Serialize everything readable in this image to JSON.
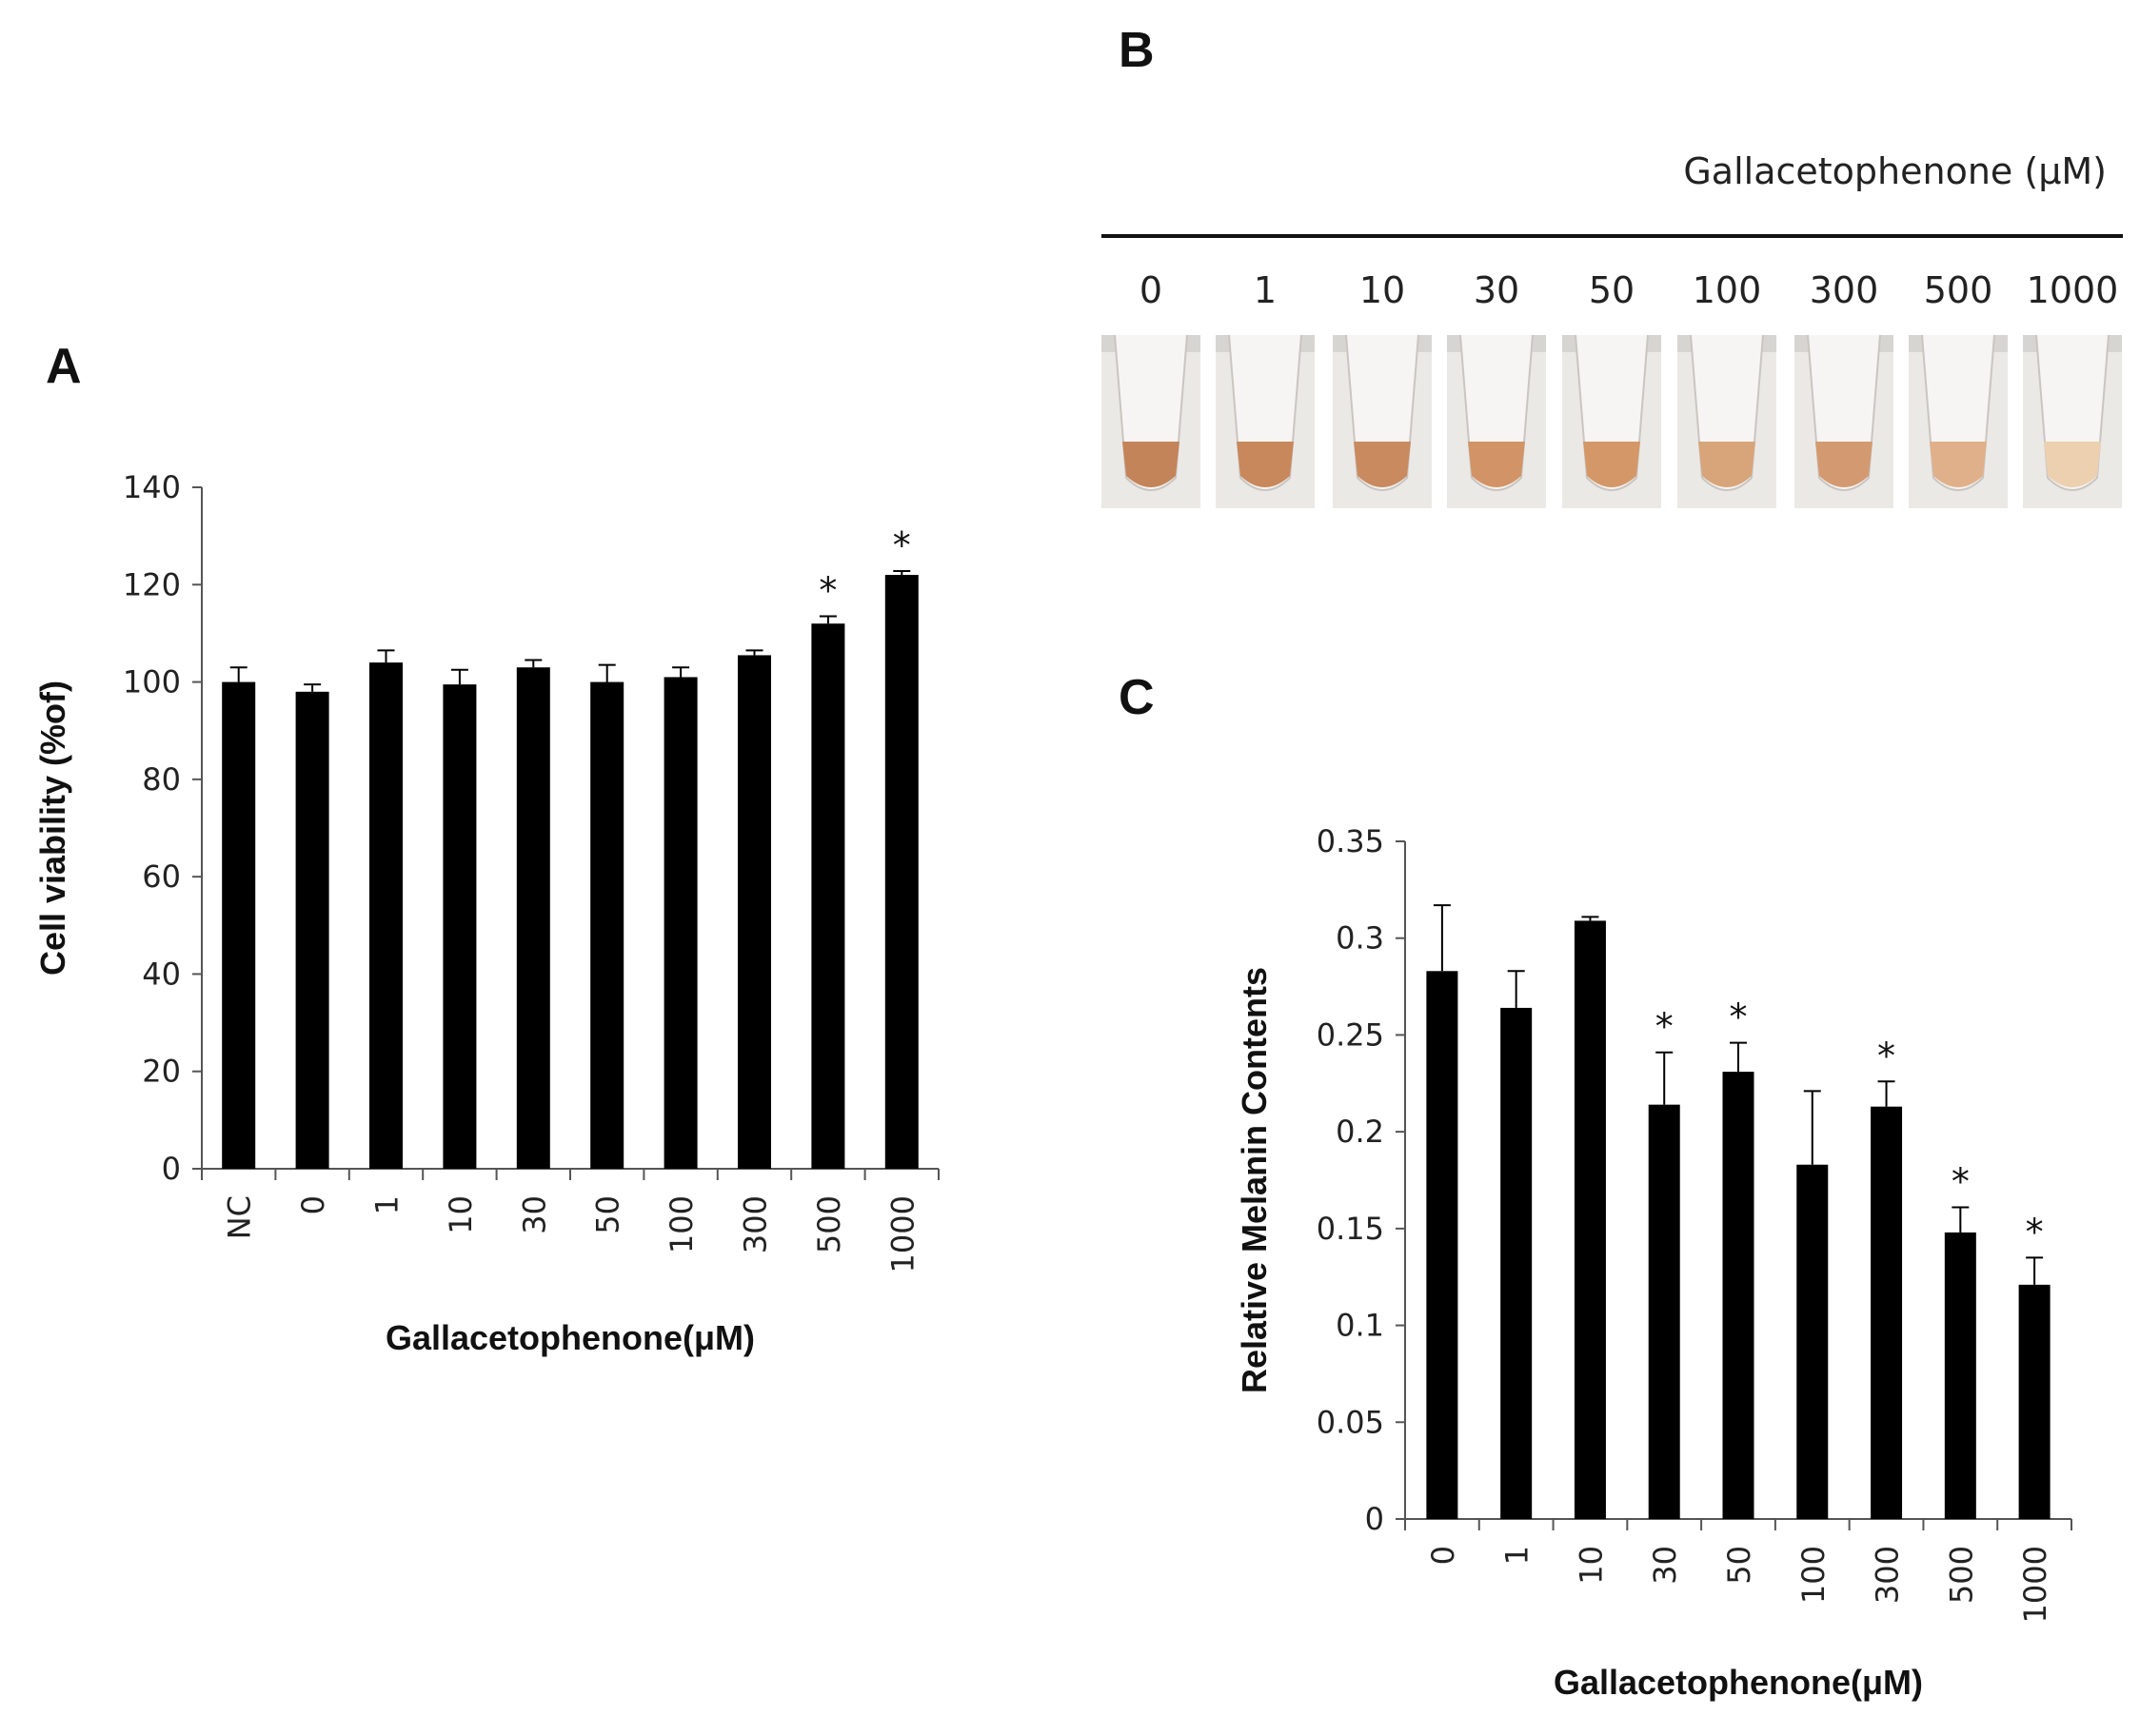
{
  "panels": {
    "a": "A",
    "b": "B",
    "c": "C"
  },
  "panel_b": {
    "header": "Gallacetophenone (μM)",
    "concentrations": [
      "0",
      "1",
      "10",
      "30",
      "50",
      "100",
      "300",
      "500",
      "1000"
    ],
    "tube_colors": [
      "#c4845a",
      "#c8885c",
      "#c98a60",
      "#d29466",
      "#d49868",
      "#d8a57a",
      "#d39a72",
      "#e0b08a",
      "#ecd0b0"
    ]
  },
  "chart_data": [
    {
      "type": "bar",
      "panel": "A",
      "categories": [
        "NC",
        "0",
        "1",
        "10",
        "30",
        "50",
        "100",
        "300",
        "500",
        "1000"
      ],
      "values": [
        100,
        98,
        104,
        99.5,
        103,
        100,
        101,
        105.5,
        112,
        122
      ],
      "errors": [
        3,
        1.5,
        2.5,
        3,
        1.5,
        3.5,
        2,
        1,
        1.5,
        0.8
      ],
      "significant": [
        "",
        "",
        "",
        "",
        "",
        "",
        "",
        "",
        "*",
        "*"
      ],
      "title": "",
      "xlabel": "Gallacetophenone(μM)",
      "ylabel": "Cell viability (%of)",
      "ylim": [
        0,
        140
      ],
      "yticks": [
        0,
        20,
        40,
        60,
        80,
        100,
        120,
        140
      ],
      "ytick_labels": [
        "0",
        "20",
        "40",
        "60",
        "80",
        "100",
        "120",
        "140"
      ],
      "bar_color": "#000000"
    },
    {
      "type": "bar",
      "panel": "C",
      "categories": [
        "0",
        "1",
        "10",
        "30",
        "50",
        "100",
        "300",
        "500",
        "1000"
      ],
      "values": [
        0.283,
        0.264,
        0.309,
        0.214,
        0.231,
        0.183,
        0.213,
        0.148,
        0.121
      ],
      "errors": [
        0.034,
        0.019,
        0.002,
        0.027,
        0.015,
        0.038,
        0.013,
        0.013,
        0.014
      ],
      "significant": [
        "",
        "",
        "",
        "*",
        "*",
        "",
        "*",
        "*",
        "*"
      ],
      "title": "",
      "xlabel": "Gallacetophenone(μM)",
      "ylabel": "Relative Melanin Contents",
      "ylim": [
        0,
        0.35
      ],
      "yticks": [
        0,
        0.05,
        0.1,
        0.15,
        0.2,
        0.25,
        0.3,
        0.35
      ],
      "ytick_labels": [
        "0",
        "0.05",
        "0.1",
        "0.15",
        "0.2",
        "0.25",
        "0.3",
        "0.35"
      ],
      "bar_color": "#000000"
    }
  ]
}
